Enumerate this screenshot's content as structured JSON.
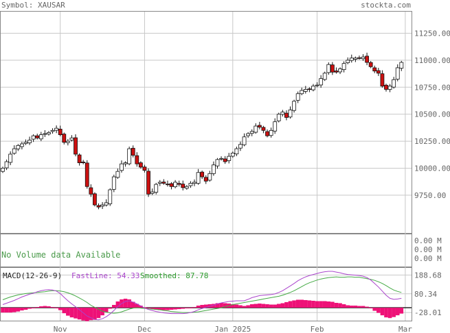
{
  "header": {
    "symbol_label": "Symbol: XAUSAR",
    "site": "stockta.com"
  },
  "volume_panel": {
    "message": "No Volume data Available",
    "axis_labels": [
      "0.00 M",
      "0.00 M",
      "0.00 M"
    ]
  },
  "macd_panel": {
    "label": "MACD(12-26-9)",
    "fastline_label": "FastLine: 54.33",
    "smoothed_label": "Smoothed: 87.78",
    "axis_labels": [
      "188.68",
      "80.34",
      "-28.01"
    ],
    "ylim": [
      -75,
      230
    ]
  },
  "colors": {
    "up_candle": "#ffffff",
    "down_candle": "#cc1111",
    "grid": "#c8c8c8",
    "fastline": "#aa44cc",
    "smoothed": "#44aa44",
    "histogram": "#ee1177"
  },
  "chart_data": {
    "type": "candlestick",
    "title": "",
    "ylim": [
      9400,
      11450
    ],
    "y_ticks": [
      "11250.00",
      "11000.00",
      "10750.00",
      "10500.00",
      "10250.00",
      "10000.00",
      "9750.00"
    ],
    "y_tick_values": [
      11250,
      11000,
      10750,
      10500,
      10250,
      10000,
      9750
    ],
    "x_tick_labels": [
      "Nov",
      "Dec",
      "Jan 2025",
      "Feb",
      "Mar"
    ],
    "x_tick_index": [
      15,
      37,
      60,
      82,
      105
    ],
    "close": [
      10000,
      10060,
      10130,
      10180,
      10210,
      10225,
      10240,
      10260,
      10300,
      10280,
      10310,
      10320,
      10330,
      10350,
      10370,
      10310,
      10240,
      10250,
      10280,
      10130,
      10050,
      10050,
      9830,
      9760,
      9660,
      9640,
      9660,
      9680,
      9800,
      9920,
      9970,
      10040,
      10050,
      10180,
      10120,
      10040,
      10010,
      9980,
      9760,
      9780,
      9850,
      9870,
      9860,
      9850,
      9830,
      9870,
      9850,
      9820,
      9830,
      9860,
      9870,
      9960,
      9920,
      9880,
      9950,
      10030,
      10080,
      10090,
      10060,
      10110,
      10140,
      10180,
      10220,
      10290,
      10320,
      10340,
      10390,
      10380,
      10350,
      10300,
      10350,
      10430,
      10500,
      10520,
      10470,
      10540,
      10620,
      10690,
      10720,
      10730,
      10730,
      10760,
      10770,
      10830,
      10880,
      10960,
      10890,
      10890,
      10920,
      10970,
      11000,
      11020,
      11020,
      11020,
      11030,
      10980,
      10940,
      10900,
      10880,
      10760,
      10730,
      10760,
      10820,
      10930,
      10980
    ],
    "series": [
      {
        "name": "FastLine",
        "values": [
          18,
          26,
          34,
          42,
          52,
          62,
          70,
          78,
          84,
          92,
          98,
          102,
          104,
          102,
          96,
          82,
          60,
          40,
          22,
          6,
          -12,
          -30,
          -48,
          -58,
          -68,
          -70,
          -64,
          -52,
          -36,
          -16,
          6,
          24,
          36,
          40,
          32,
          22,
          10,
          -2,
          -10,
          -16,
          -22,
          -26,
          -30,
          -32,
          -34,
          -34,
          -34,
          -34,
          -32,
          -28,
          -22,
          -12,
          -4,
          2,
          8,
          14,
          22,
          28,
          32,
          36,
          38,
          40,
          40,
          40,
          48,
          58,
          64,
          70,
          72,
          74,
          76,
          80,
          88,
          98,
          112,
          126,
          140,
          156,
          168,
          178,
          186,
          192,
          198,
          204,
          208,
          210,
          210,
          206,
          202,
          196,
          192,
          190,
          188,
          186,
          182,
          174,
          160,
          140,
          120,
          96,
          72,
          54,
          48,
          50,
          54
        ]
      },
      {
        "name": "Smoothed",
        "values": [
          46,
          54,
          62,
          68,
          74,
          78,
          82,
          84,
          86,
          88,
          90,
          92,
          96,
          98,
          98,
          96,
          92,
          86,
          78,
          68,
          56,
          44,
          30,
          14,
          2,
          -10,
          -20,
          -26,
          -30,
          -32,
          -30,
          -24,
          -16,
          -8,
          -2,
          0,
          -2,
          -4,
          -6,
          -8,
          -10,
          -12,
          -16,
          -18,
          -22,
          -24,
          -26,
          -28,
          -28,
          -28,
          -26,
          -24,
          -20,
          -16,
          -12,
          -8,
          -4,
          0,
          6,
          12,
          18,
          22,
          26,
          30,
          34,
          38,
          42,
          46,
          50,
          54,
          58,
          62,
          66,
          72,
          80,
          88,
          98,
          110,
          122,
          134,
          144,
          152,
          160,
          166,
          170,
          174,
          176,
          178,
          176,
          176,
          178,
          178,
          176,
          176,
          172,
          168,
          164,
          158,
          150,
          140,
          128,
          114,
          102,
          94,
          88
        ]
      },
      {
        "name": "Histogram",
        "values": [
          -28,
          -28,
          -28,
          -26,
          -22,
          -16,
          -12,
          -6,
          -2,
          4,
          8,
          10,
          8,
          4,
          -2,
          -14,
          -32,
          -46,
          -56,
          -62,
          -68,
          -74,
          -78,
          -72,
          -70,
          -60,
          -44,
          -26,
          -6,
          16,
          36,
          48,
          52,
          48,
          34,
          22,
          12,
          2,
          -4,
          -8,
          -12,
          -14,
          -14,
          -14,
          -12,
          -10,
          -8,
          -6,
          -4,
          0,
          4,
          12,
          16,
          18,
          20,
          22,
          26,
          28,
          26,
          24,
          20,
          18,
          14,
          10,
          14,
          20,
          22,
          24,
          22,
          20,
          18,
          18,
          22,
          26,
          32,
          38,
          42,
          46,
          46,
          44,
          42,
          40,
          38,
          38,
          38,
          36,
          34,
          28,
          26,
          20,
          14,
          12,
          12,
          10,
          10,
          6,
          -4,
          -18,
          -30,
          -44,
          -56,
          -60,
          -54,
          -44,
          -34
        ]
      }
    ]
  }
}
